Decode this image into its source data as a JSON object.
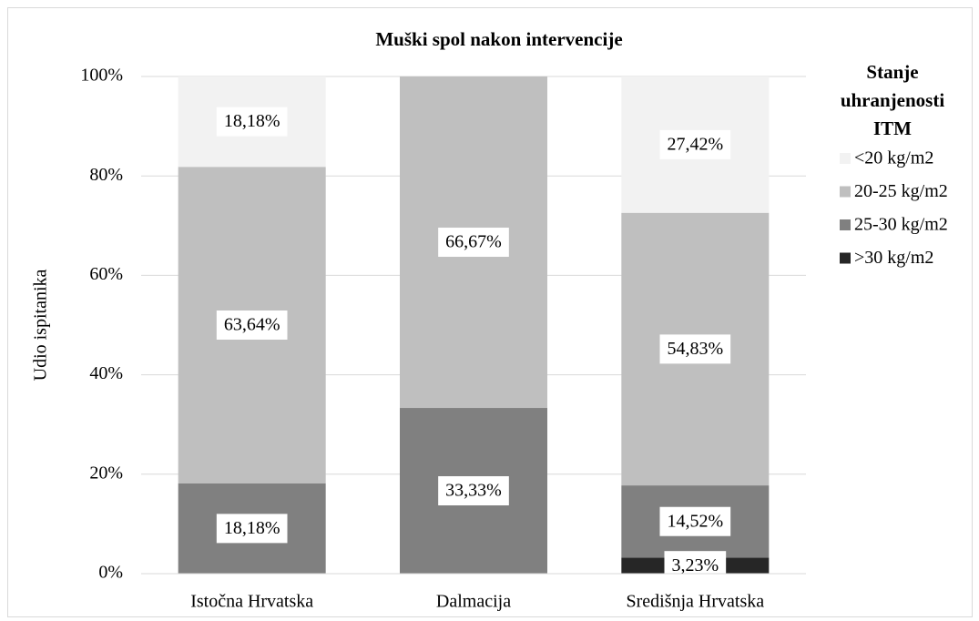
{
  "chart_data": {
    "type": "stacked_bar",
    "title": "Muški spol nakon intervencije",
    "y_label": "Udio ispitanika",
    "legend_title": "Stanje uhranjenosti ITM",
    "legend_position": "right",
    "categories": [
      "Istočna Hrvatska",
      "Dalmacija",
      "Središnja Hrvatska"
    ],
    "series": [
      {
        "name": "<20 kg/m2",
        "color": "#f2f2f2",
        "values": [
          18.18,
          0,
          27.42
        ],
        "value_labels": [
          "18,18%",
          null,
          "27,42%"
        ]
      },
      {
        "name": "20-25 kg/m2",
        "color": "#bfbfbf",
        "values": [
          63.64,
          66.67,
          54.83
        ],
        "value_labels": [
          "63,64%",
          "66,67%",
          "54,83%"
        ]
      },
      {
        "name": "25-30 kg/m2",
        "color": "#808080",
        "values": [
          18.18,
          33.33,
          14.52
        ],
        "value_labels": [
          "18,18%",
          "33,33%",
          "14,52%"
        ]
      },
      {
        "name": ">30 kg/m2",
        "color": "#262626",
        "values": [
          0,
          0,
          3.23
        ],
        "value_labels": [
          null,
          null,
          "3,23%"
        ]
      }
    ],
    "ylim": [
      0,
      100
    ],
    "yticks": [
      {
        "value": 0,
        "label": "0%"
      },
      {
        "value": 20,
        "label": "20%"
      },
      {
        "value": 40,
        "label": "40%"
      },
      {
        "value": 60,
        "label": "60%"
      },
      {
        "value": 80,
        "label": "80%"
      },
      {
        "value": 100,
        "label": "100%"
      }
    ],
    "grid": true
  }
}
